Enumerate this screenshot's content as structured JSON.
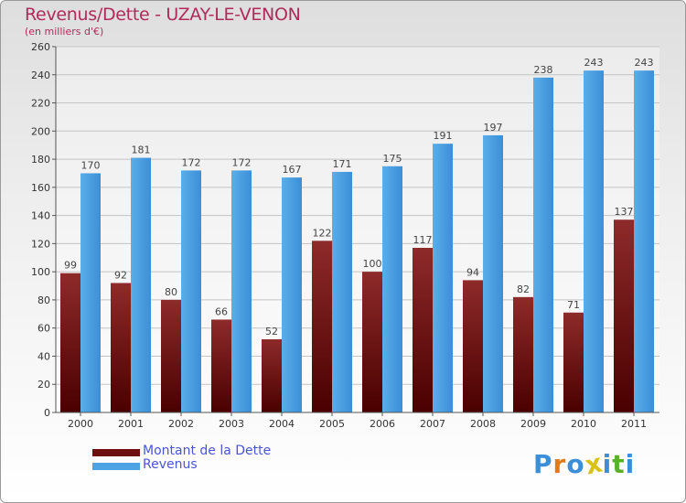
{
  "header": {
    "title": "Revenus/Dette - UZAY-LE-VENON",
    "subtitle": "(en milliers d'€)"
  },
  "chart_data": {
    "type": "bar",
    "categories": [
      "2000",
      "2001",
      "2002",
      "2003",
      "2004",
      "2005",
      "2006",
      "2007",
      "2008",
      "2009",
      "2010",
      "2011"
    ],
    "series": [
      {
        "name": "Montant de la Dette",
        "values": [
          99,
          92,
          80,
          66,
          52,
          122,
          100,
          117,
          94,
          82,
          71,
          137
        ],
        "color": "#7a1818"
      },
      {
        "name": "Revenus",
        "values": [
          170,
          181,
          172,
          172,
          167,
          171,
          175,
          191,
          197,
          238,
          243,
          243
        ],
        "color": "#4da3e3"
      }
    ],
    "ylim": [
      0,
      260
    ],
    "ytick_step": 20,
    "grid": true,
    "legend_position": "bottom-left"
  },
  "legend": {
    "items": [
      {
        "label": "Montant de la Dette",
        "color": "#6e1010"
      },
      {
        "label": "Revenus",
        "color": "#4da3e3"
      }
    ]
  },
  "logo": {
    "letters": [
      "P",
      "r",
      "o",
      "x",
      "i",
      "t",
      "i"
    ],
    "colors": [
      "#3a8fd8",
      "#e07a1a",
      "#3a8fd8",
      "#d8c21a",
      "#3a8fd8",
      "#5ab02a",
      "#3a8fd8"
    ]
  }
}
